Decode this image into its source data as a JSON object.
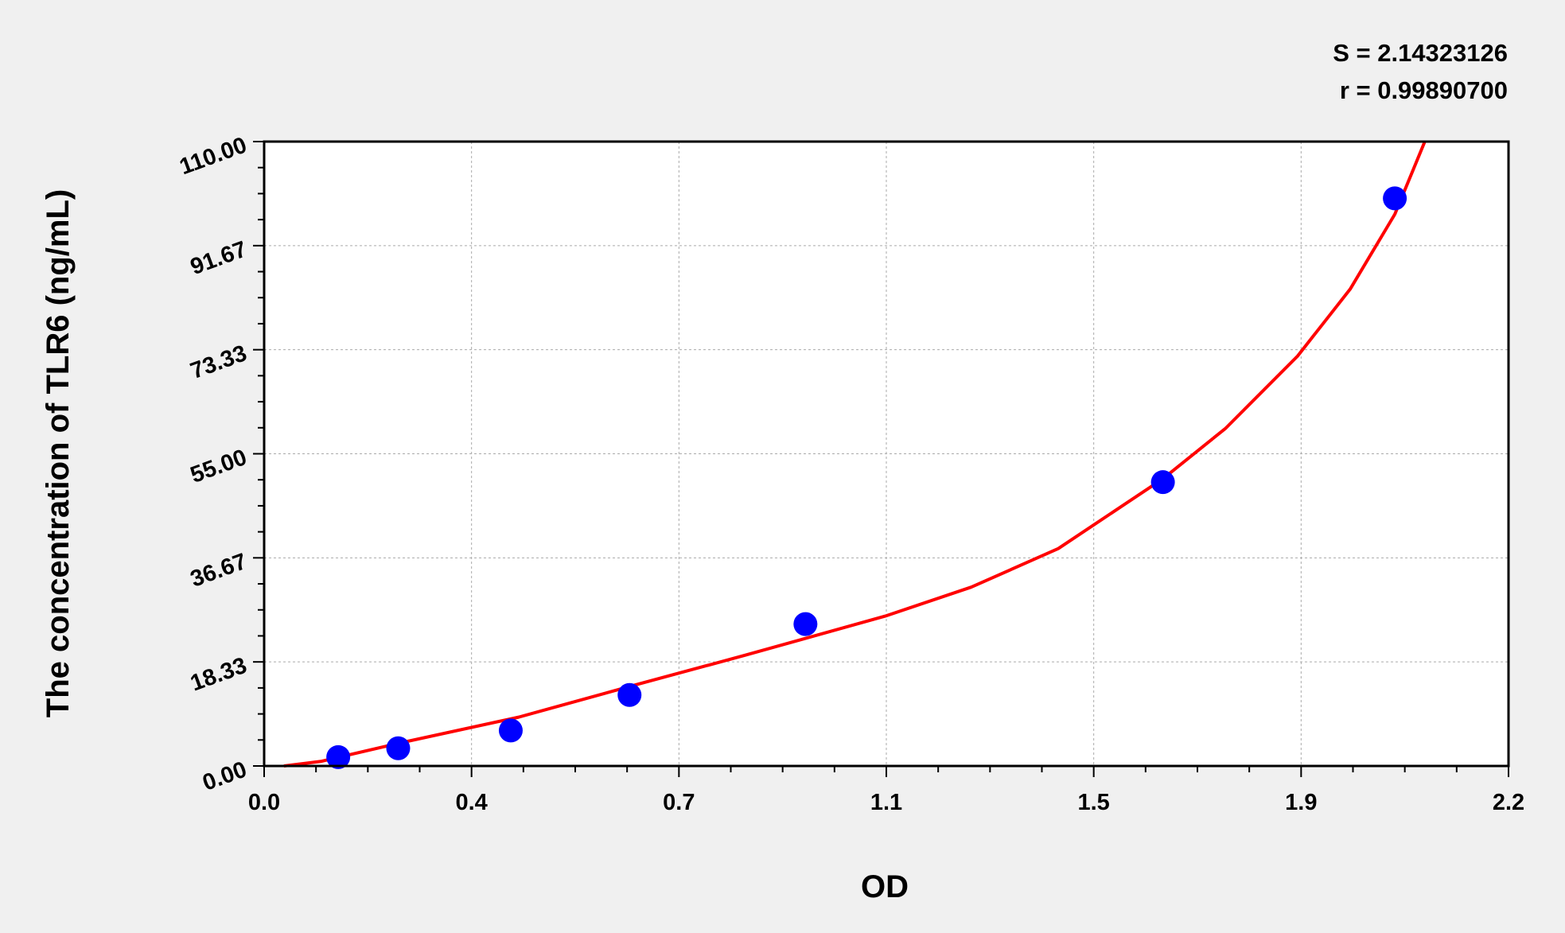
{
  "chart_data": {
    "type": "scatter",
    "title": "",
    "xlabel": "OD",
    "ylabel": "The concentration of TLR6 (ng/mL)",
    "xlim": [
      0,
      2.2
    ],
    "ylim": [
      0,
      110
    ],
    "x_ticks": [
      "0.0",
      "0.4",
      "0.7",
      "1.1",
      "1.5",
      "1.9",
      "2.2"
    ],
    "y_ticks": [
      "0.00",
      "18.33",
      "36.67",
      "55.00",
      "73.33",
      "91.67",
      "110.00"
    ],
    "grid": true,
    "annotations": [
      "S = 2.14323126",
      "r = 0.99890700"
    ],
    "points": {
      "x": [
        0.131,
        0.237,
        0.436,
        0.646,
        0.957,
        1.589,
        1.999
      ],
      "y": [
        1.56,
        3.12,
        6.25,
        12.5,
        25,
        50,
        100
      ],
      "color": "#0000ff"
    },
    "fit_curve": {
      "color": "#ff0000",
      "x": [
        0.035,
        0.1,
        0.238,
        0.45,
        0.646,
        0.85,
        1.098,
        1.25,
        1.404,
        1.589,
        1.7,
        1.827,
        1.92,
        1.999,
        2.052
      ],
      "y": [
        0,
        0.8,
        4.0,
        8.6,
        14,
        19.5,
        26.4,
        31.5,
        38.3,
        50.6,
        59.5,
        72.2,
        84,
        97.2,
        110
      ]
    }
  }
}
